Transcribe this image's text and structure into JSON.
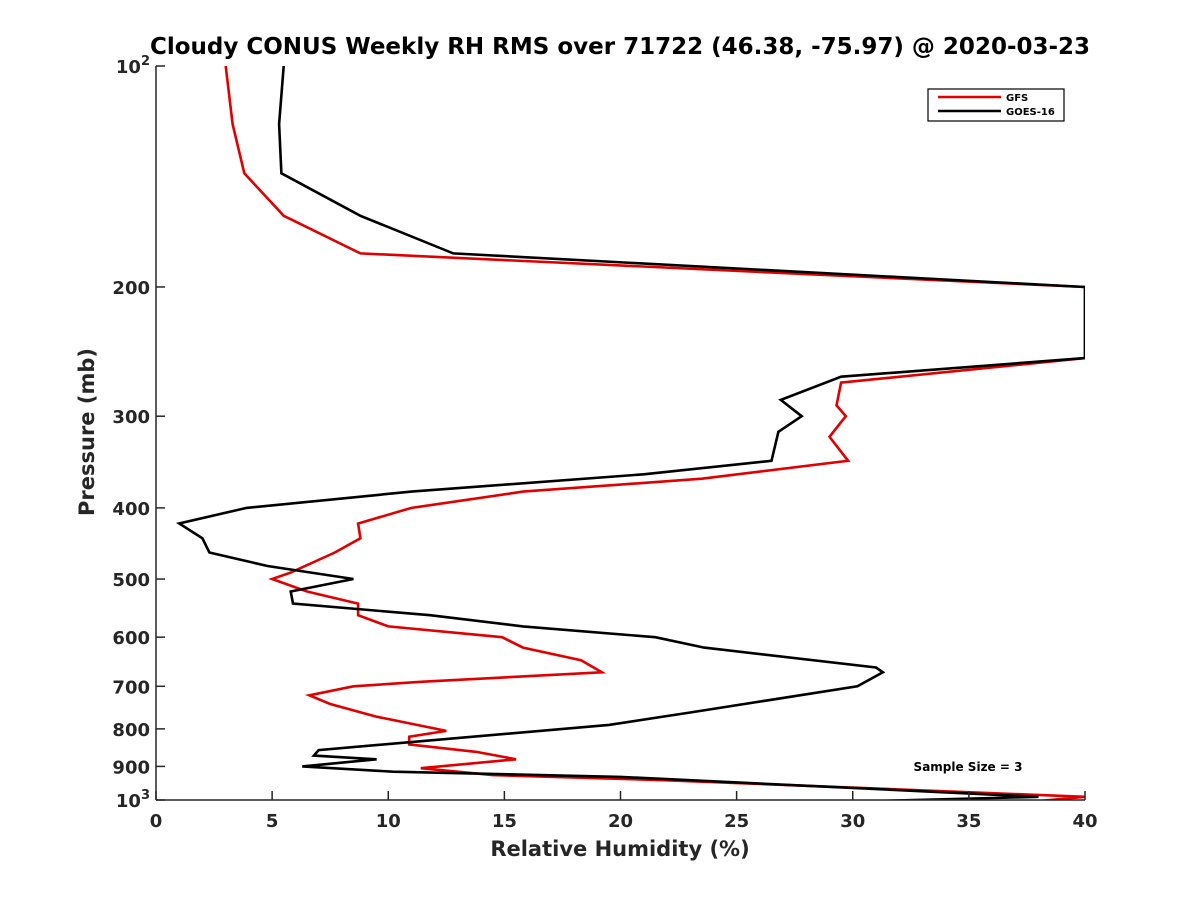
{
  "chart_data": {
    "type": "line",
    "title": "Cloudy CONUS Weekly RH RMS over 71722 (46.38, -75.97) @ 2020-03-23",
    "xlabel": "Relative Humidity (%)",
    "ylabel": "Pressure (mb)",
    "xlim": [
      0,
      40
    ],
    "ylim": [
      100,
      1000
    ],
    "yscale": "log",
    "yreversed": true,
    "xticks": [
      0,
      5,
      10,
      15,
      20,
      25,
      30,
      35,
      40
    ],
    "xtick_labels": [
      "0",
      "5",
      "10",
      "15",
      "20",
      "25",
      "30",
      "35",
      "40"
    ],
    "yticks": [
      100,
      200,
      300,
      400,
      500,
      600,
      700,
      800,
      900,
      1000
    ],
    "ytick_labels": [
      {
        "base": "10",
        "exp": "2"
      },
      {
        "base": "200"
      },
      {
        "base": "300"
      },
      {
        "base": "400"
      },
      {
        "base": "500"
      },
      {
        "base": "600"
      },
      {
        "base": "700"
      },
      {
        "base": "800"
      },
      {
        "base": "900"
      },
      {
        "base": "10",
        "exp": "3"
      }
    ],
    "legend": {
      "position": "top-right",
      "entries": [
        "GFS",
        "GOES-16"
      ]
    },
    "annotation": "Sample Size = 3",
    "series": [
      {
        "name": "GFS",
        "color": "#e00000",
        "points": [
          [
            3.0,
            100
          ],
          [
            3.3,
            120
          ],
          [
            3.8,
            140
          ],
          [
            5.5,
            160
          ],
          [
            8.8,
            180
          ],
          [
            40,
            200
          ],
          [
            40,
            250
          ],
          [
            29.5,
            270
          ],
          [
            29.3,
            290
          ],
          [
            29.7,
            300
          ],
          [
            29.0,
            320
          ],
          [
            29.8,
            345
          ],
          [
            23.5,
            365
          ],
          [
            15.8,
            380
          ],
          [
            11.0,
            400
          ],
          [
            8.7,
            420
          ],
          [
            8.8,
            440
          ],
          [
            7.7,
            460
          ],
          [
            5.8,
            490
          ],
          [
            5.0,
            500
          ],
          [
            6.5,
            520
          ],
          [
            8.7,
            540
          ],
          [
            8.7,
            560
          ],
          [
            10.0,
            580
          ],
          [
            14.9,
            600
          ],
          [
            15.8,
            620
          ],
          [
            18.3,
            645
          ],
          [
            19.2,
            670
          ],
          [
            11.5,
            690
          ],
          [
            8.5,
            700
          ],
          [
            6.6,
            720
          ],
          [
            7.5,
            740
          ],
          [
            9.5,
            770
          ],
          [
            12.5,
            805
          ],
          [
            10.9,
            820
          ],
          [
            10.9,
            840
          ],
          [
            13.8,
            860
          ],
          [
            15.5,
            880
          ],
          [
            11.4,
            905
          ],
          [
            14.5,
            925
          ],
          [
            22,
            940
          ],
          [
            40,
            990
          ],
          [
            37,
            1010
          ]
        ]
      },
      {
        "name": "GOES-16",
        "color": "#000000",
        "points": [
          [
            5.5,
            100
          ],
          [
            5.3,
            120
          ],
          [
            5.4,
            140
          ],
          [
            8.8,
            160
          ],
          [
            12.8,
            180
          ],
          [
            40,
            200
          ],
          [
            40,
            250
          ],
          [
            29.5,
            265
          ],
          [
            26.9,
            285
          ],
          [
            27.8,
            300
          ],
          [
            26.8,
            315
          ],
          [
            26.5,
            345
          ],
          [
            21.0,
            360
          ],
          [
            11.0,
            380
          ],
          [
            3.9,
            400
          ],
          [
            1.0,
            420
          ],
          [
            2.0,
            440
          ],
          [
            2.3,
            460
          ],
          [
            4.8,
            480
          ],
          [
            8.5,
            500
          ],
          [
            5.8,
            520
          ],
          [
            5.9,
            540
          ],
          [
            11.8,
            560
          ],
          [
            15.8,
            580
          ],
          [
            21.5,
            600
          ],
          [
            23.6,
            620
          ],
          [
            31.0,
            660
          ],
          [
            31.3,
            670
          ],
          [
            30.2,
            700
          ],
          [
            23.0,
            760
          ],
          [
            19.5,
            790
          ],
          [
            7.0,
            855
          ],
          [
            6.8,
            870
          ],
          [
            9.5,
            880
          ],
          [
            6.3,
            900
          ],
          [
            10.2,
            915
          ],
          [
            20,
            930
          ],
          [
            38,
            990
          ],
          [
            27.5,
            1010
          ]
        ]
      }
    ]
  }
}
